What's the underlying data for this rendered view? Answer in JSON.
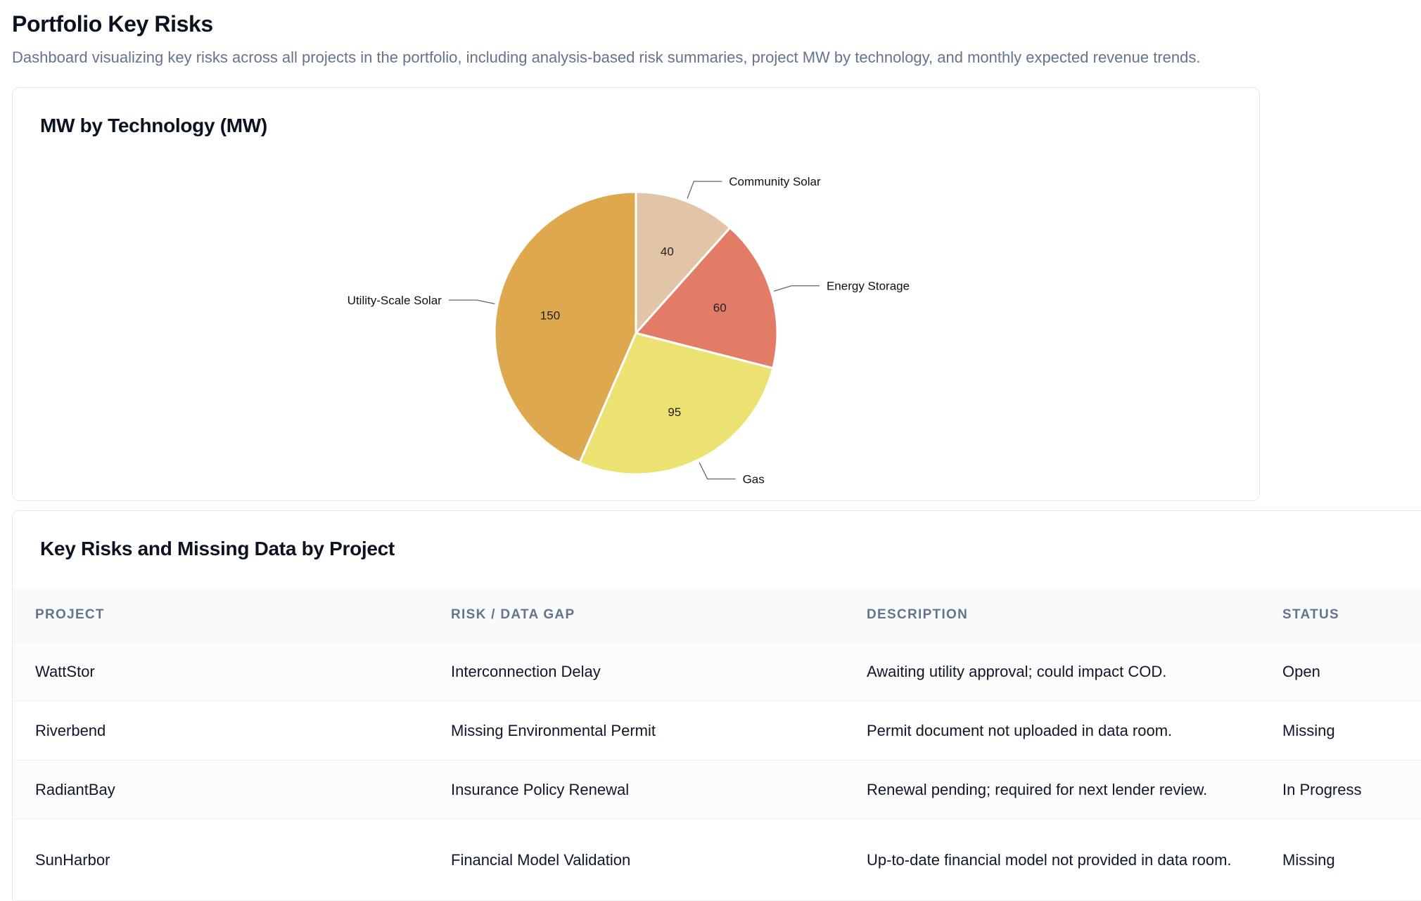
{
  "header": {
    "title": "Portfolio Key Risks",
    "subtitle": "Dashboard visualizing key risks across all projects in the portfolio, including analysis-based risk summaries, project MW by technology, and monthly expected revenue trends."
  },
  "chart_card": {
    "title": "MW by Technology (MW)"
  },
  "chart_data": {
    "type": "pie",
    "title": "MW by Technology (MW)",
    "slices": [
      {
        "label": "Community Solar",
        "value": 40,
        "color": "#e2c4a6"
      },
      {
        "label": "Energy Storage",
        "value": 60,
        "color": "#e27c67"
      },
      {
        "label": "Gas",
        "value": 95,
        "color": "#ece272"
      },
      {
        "label": "Utility-Scale Solar",
        "value": 150,
        "color": "#dea94e"
      }
    ]
  },
  "table_card": {
    "title": "Key Risks and Missing Data by Project",
    "columns": [
      "PROJECT",
      "RISK / DATA GAP",
      "DESCRIPTION",
      "STATUS"
    ],
    "rows": [
      {
        "project": "WattStor",
        "risk": "Interconnection Delay",
        "description": "Awaiting utility approval; could impact COD.",
        "status": "Open"
      },
      {
        "project": "Riverbend",
        "risk": "Missing Environmental Permit",
        "description": "Permit document not uploaded in data room.",
        "status": "Missing"
      },
      {
        "project": "RadiantBay",
        "risk": "Insurance Policy Renewal",
        "description": "Renewal pending; required for next lender review.",
        "status": "In Progress"
      },
      {
        "project": "SunHarbor",
        "risk": "Financial Model Validation",
        "description": "Up-to-date financial model not provided in data room.",
        "status": "Missing"
      }
    ]
  }
}
